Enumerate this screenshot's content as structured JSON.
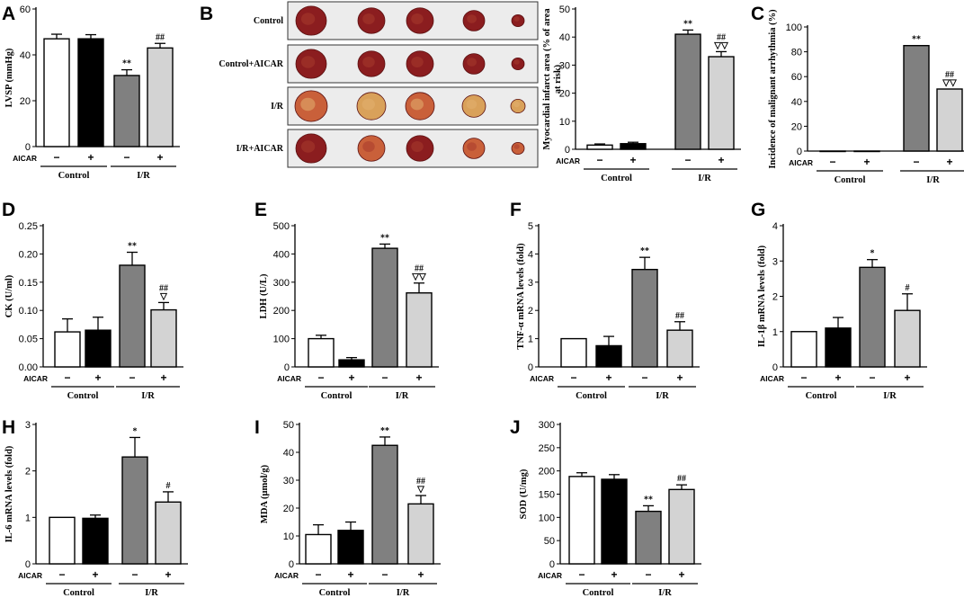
{
  "photo_panel": {
    "label": "B",
    "rows": [
      {
        "label": "Control"
      },
      {
        "label": "Control+AICAR"
      },
      {
        "label": "I/R"
      },
      {
        "label": "I/R+AICAR"
      }
    ]
  },
  "chart_data": [
    {
      "id": "A",
      "type": "bar",
      "label": "A",
      "ylabel": "LVSP (mmHg)",
      "yticks": [
        0,
        20,
        40,
        60
      ],
      "ylim": [
        0,
        60
      ],
      "aicar_label": "AICAR",
      "aicar_signs": [
        "−",
        "+",
        "−",
        "+"
      ],
      "groups": [
        "Control",
        "I/R"
      ],
      "values": [
        47,
        47,
        31,
        43
      ],
      "errors": [
        2,
        1.8,
        2.5,
        2
      ],
      "annotations": [
        "",
        "",
        "**",
        "##"
      ]
    },
    {
      "id": "B",
      "type": "bar",
      "label": "",
      "ylabel": "Myocardial infarct area (% of area at risk)",
      "yticks": [
        0,
        10,
        20,
        30,
        40,
        50
      ],
      "ylim": [
        0,
        50
      ],
      "aicar_label": "AICAR",
      "aicar_signs": [
        "−",
        "+",
        "−",
        "+"
      ],
      "groups": [
        "Control",
        "I/R"
      ],
      "values": [
        1.5,
        2,
        41,
        33
      ],
      "errors": [
        0.4,
        0.5,
        1.5,
        1.8
      ],
      "annotations": [
        "",
        "",
        "**",
        "##\n▽▽"
      ]
    },
    {
      "id": "C",
      "type": "bar",
      "label": "C",
      "ylabel": "Incidence of malignant arrhythmia (%)",
      "yticks": [
        0,
        20,
        40,
        60,
        80,
        100
      ],
      "ylim": [
        0,
        100
      ],
      "aicar_label": "AICAR",
      "aicar_signs": [
        "−",
        "+",
        "−",
        "+"
      ],
      "groups": [
        "Control",
        "I/R"
      ],
      "values": [
        0,
        0,
        85,
        50
      ],
      "errors": [
        0,
        0,
        0,
        0
      ],
      "annotations": [
        "",
        "",
        "**",
        "##\n▽▽"
      ]
    },
    {
      "id": "D",
      "type": "bar",
      "label": "D",
      "ylabel": "CK (U/ml)",
      "yticks": [
        "0.00",
        "0.05",
        "0.10",
        "0.15",
        "0.20",
        "0.25"
      ],
      "ylim": [
        0,
        0.25
      ],
      "aicar_label": "AICAR",
      "aicar_signs": [
        "−",
        "+",
        "−",
        "+"
      ],
      "groups": [
        "Control",
        "I/R"
      ],
      "values": [
        0.062,
        0.065,
        0.18,
        0.101
      ],
      "errors": [
        0.023,
        0.023,
        0.023,
        0.013
      ],
      "annotations": [
        "",
        "",
        "**",
        "##\n▽"
      ]
    },
    {
      "id": "E",
      "type": "bar",
      "label": "E",
      "ylabel": "LDH (U/L)",
      "yticks": [
        0,
        100,
        200,
        300,
        400,
        500
      ],
      "ylim": [
        0,
        500
      ],
      "aicar_label": "AICAR",
      "aicar_signs": [
        "−",
        "+",
        "−",
        "+"
      ],
      "groups": [
        "Control",
        "I/R"
      ],
      "values": [
        100,
        25,
        420,
        262
      ],
      "errors": [
        12,
        8,
        15,
        35
      ],
      "annotations": [
        "",
        "",
        "**",
        "##\n▽▽"
      ]
    },
    {
      "id": "F",
      "type": "bar",
      "label": "F",
      "ylabel": "TNF-α mRNA levels (fold)",
      "yticks": [
        0,
        1,
        2,
        3,
        4,
        5
      ],
      "ylim": [
        0,
        5
      ],
      "aicar_label": "AICAR",
      "aicar_signs": [
        "−",
        "+",
        "−",
        "+"
      ],
      "groups": [
        "Control",
        "I/R"
      ],
      "values": [
        1,
        0.75,
        3.45,
        1.3
      ],
      "errors": [
        0,
        0.33,
        0.43,
        0.3
      ],
      "annotations": [
        "",
        "",
        "**",
        "##"
      ]
    },
    {
      "id": "G",
      "type": "bar",
      "label": "G",
      "ylabel": "IL-1β mRNA levels (fold)",
      "yticks": [
        0,
        1,
        2,
        3,
        4
      ],
      "ylim": [
        0,
        4
      ],
      "aicar_label": "AICAR",
      "aicar_signs": [
        "−",
        "+",
        "−",
        "+"
      ],
      "groups": [
        "Control",
        "I/R"
      ],
      "values": [
        1,
        1.1,
        2.82,
        1.6
      ],
      "errors": [
        0,
        0.3,
        0.22,
        0.47
      ],
      "annotations": [
        "",
        "",
        "*",
        "#"
      ]
    },
    {
      "id": "H",
      "type": "bar",
      "label": "H",
      "ylabel": "IL-6 mRNA levels (fold)",
      "yticks": [
        0,
        1,
        2,
        3
      ],
      "ylim": [
        0,
        3
      ],
      "aicar_label": "AICAR",
      "aicar_signs": [
        "−",
        "+",
        "−",
        "+"
      ],
      "groups": [
        "Control",
        "I/R"
      ],
      "values": [
        1,
        0.98,
        2.3,
        1.33
      ],
      "errors": [
        0,
        0.07,
        0.42,
        0.22
      ],
      "annotations": [
        "",
        "",
        "*",
        "#"
      ]
    },
    {
      "id": "I",
      "type": "bar",
      "label": "I",
      "ylabel": "MDA (μmol/g)",
      "yticks": [
        0,
        10,
        20,
        30,
        40,
        50
      ],
      "ylim": [
        0,
        50
      ],
      "aicar_label": "AICAR",
      "aicar_signs": [
        "−",
        "+",
        "−",
        "+"
      ],
      "groups": [
        "Control",
        "I/R"
      ],
      "values": [
        10.5,
        12,
        42.5,
        21.5
      ],
      "errors": [
        3.5,
        3,
        3,
        3
      ],
      "annotations": [
        "",
        "",
        "**",
        "##\n▽"
      ]
    },
    {
      "id": "J",
      "type": "bar",
      "label": "J",
      "ylabel": "SOD (U/mg)",
      "yticks": [
        0,
        50,
        100,
        150,
        200,
        250,
        300
      ],
      "ylim": [
        0,
        300
      ],
      "aicar_label": "AICAR",
      "aicar_signs": [
        "−",
        "+",
        "−",
        "+"
      ],
      "groups": [
        "Control",
        "I/R"
      ],
      "values": [
        188,
        182,
        113,
        160
      ],
      "errors": [
        8,
        10,
        12,
        10
      ],
      "annotations": [
        "",
        "",
        "**",
        "##"
      ]
    }
  ],
  "colors": {
    "bars": [
      "#ffffff",
      "#000000",
      "#808080",
      "#d3d3d3"
    ],
    "axis": "#000000",
    "heart_dark": "#8b1d1f",
    "heart_light": "#c9603a",
    "heart_tan": "#d9a15a"
  }
}
